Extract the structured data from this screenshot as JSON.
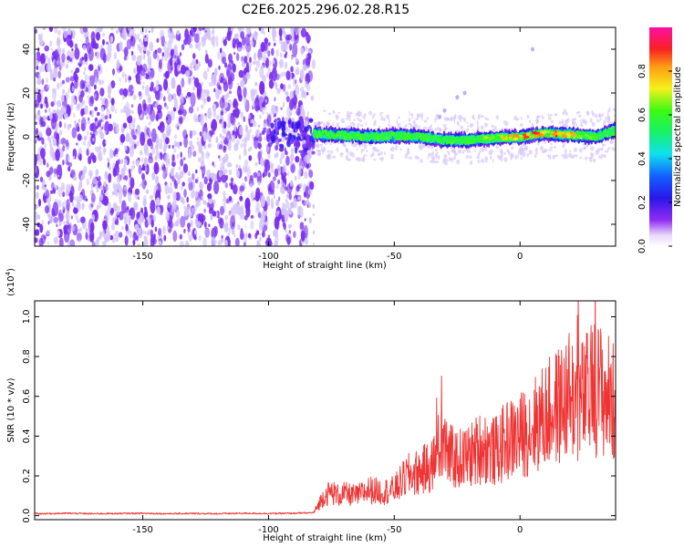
{
  "figure_title": "C2E6.2025.296.02.28.R15",
  "colors": {
    "snr_line": "#ef3434",
    "spectrogram_scatter": "#7a2ff0",
    "spectrogram_scatter_light": "#d4c4fb",
    "frame": "#000000"
  },
  "colorbar": {
    "label": "Normalized spectral amplitude",
    "tick_labels": [
      "0.0",
      "0.2",
      "0.4",
      "0.6",
      "0.8"
    ],
    "range": [
      0.0,
      1.0
    ],
    "colormap": "rainbow (purple-blue-cyan-green-yellow-orange-red-magenta)"
  },
  "chart_data": [
    {
      "type": "heatmap",
      "panel": "spectrogram",
      "title": "",
      "xlabel": "Height of straight line (km)",
      "ylabel": "Frequency (Hz)",
      "xlim": [
        -193,
        38
      ],
      "ylim": [
        -50,
        50
      ],
      "x_ticks": [
        -150,
        -100,
        -50,
        0
      ],
      "x_tick_labels": [
        "-150",
        "-100",
        "-50",
        "0"
      ],
      "y_ticks": [
        -40,
        -20,
        0,
        20,
        40
      ],
      "y_tick_labels": [
        "-40",
        "-20",
        "0",
        "20",
        "40"
      ],
      "grid": false,
      "noise_region_x": [
        -193,
        -82
      ],
      "signal_trace": {
        "x": [
          -82,
          -70,
          -60,
          -50,
          -40,
          -30,
          -20,
          -10,
          0,
          10,
          20,
          30,
          38
        ],
        "freq": [
          1.5,
          0.5,
          0.0,
          0.5,
          0.0,
          -1.5,
          -1.5,
          -0.5,
          0.0,
          1.5,
          1.0,
          0.0,
          3.0
        ],
        "amplitude": [
          0.3,
          0.35,
          0.4,
          0.45,
          0.5,
          0.55,
          0.6,
          0.7,
          0.85,
          0.9,
          0.8,
          0.6,
          0.4
        ]
      }
    },
    {
      "type": "line",
      "panel": "snr",
      "title": "",
      "xlabel": "Height of straight line (km)",
      "ylabel": "SNR (10 * v/v)",
      "y_scale_note": "(x10",
      "y_scale_exponent": "4",
      "y_scale_close": ")",
      "xlim": [
        -193,
        38
      ],
      "ylim": [
        -0.02,
        1.08
      ],
      "x_ticks": [
        -150,
        -100,
        -50,
        0
      ],
      "x_tick_labels": [
        "-150",
        "-100",
        "-50",
        "0"
      ],
      "y_ticks": [
        0.0,
        0.2,
        0.4,
        0.6,
        0.8,
        1.0
      ],
      "y_tick_labels": [
        "0.0",
        "0.2",
        "0.4",
        "0.6",
        "0.8",
        "1.0"
      ],
      "grid": false,
      "series": [
        {
          "x": [
            -193,
            -180,
            -170,
            -160,
            -150,
            -140,
            -130,
            -120,
            -110,
            -100,
            -90,
            -82,
            -78,
            -75,
            -72,
            -70,
            -65,
            -60,
            -55,
            -50,
            -45,
            -40,
            -35,
            -32,
            -30,
            -28,
            -25,
            -20,
            -15,
            -10,
            -5,
            0,
            5,
            10,
            15,
            20,
            25,
            30,
            35,
            38
          ],
          "values": [
            0.01,
            0.012,
            0.01,
            0.011,
            0.012,
            0.01,
            0.011,
            0.01,
            0.012,
            0.011,
            0.012,
            0.015,
            0.1,
            0.12,
            0.1,
            0.11,
            0.1,
            0.13,
            0.12,
            0.13,
            0.2,
            0.22,
            0.25,
            0.35,
            0.4,
            0.3,
            0.28,
            0.3,
            0.35,
            0.32,
            0.38,
            0.4,
            0.45,
            0.5,
            0.55,
            0.6,
            0.58,
            0.65,
            0.6,
            0.55
          ]
        }
      ]
    }
  ]
}
